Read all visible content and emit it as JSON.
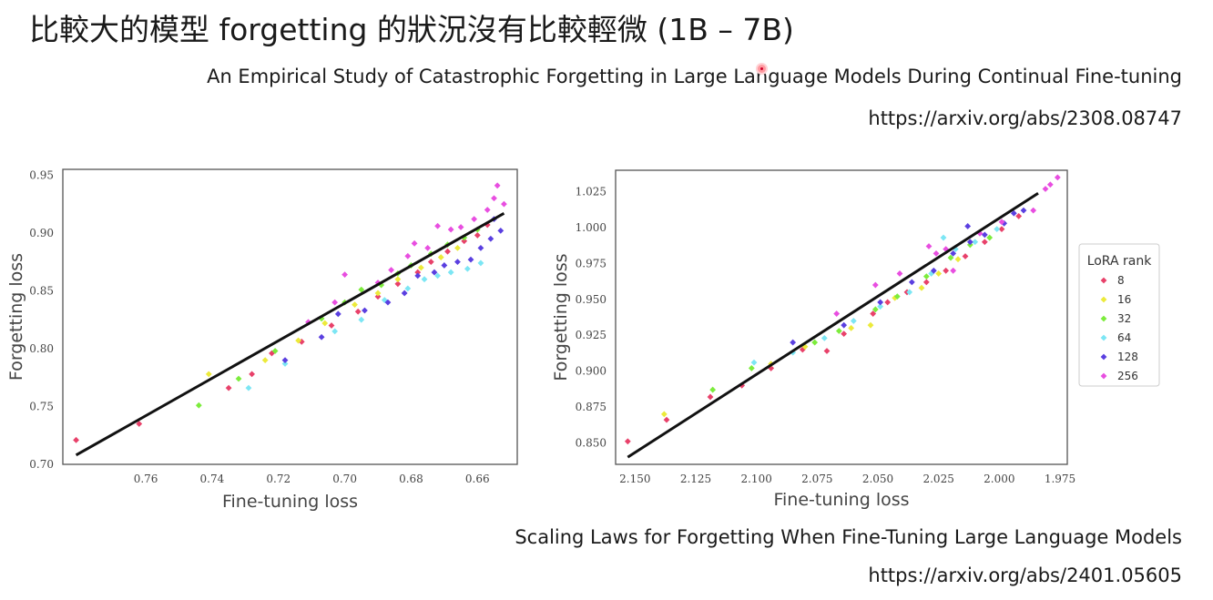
{
  "slide": {
    "title": "比較大的模型 forgetting 的狀況沒有比較輕微 (1B – 7B)",
    "ref1_title": "An Empirical Study of Catastrophic Forgetting in Large Language Models During Continual Fine-tuning",
    "ref1_url": "https://arxiv.org/abs/2308.08747",
    "ref2_title": "Scaling Laws for Forgetting When Fine-Tuning Large Language Models",
    "ref2_url": "https://arxiv.org/abs/2401.05605"
  },
  "legend": {
    "title": "LoRA rank",
    "entries": [
      {
        "label": "8",
        "color": "#e8416a"
      },
      {
        "label": "16",
        "color": "#ecea3a"
      },
      {
        "label": "32",
        "color": "#7cec3c"
      },
      {
        "label": "64",
        "color": "#7ce6f4"
      },
      {
        "label": "128",
        "color": "#5a3fe0"
      },
      {
        "label": "256",
        "color": "#e84ee0"
      }
    ]
  },
  "chart_data": [
    {
      "type": "scatter",
      "xlabel": "Fine-tuning loss",
      "ylabel": "Forgetting loss",
      "x_reversed": true,
      "xlim": [
        0.785,
        0.648
      ],
      "ylim": [
        0.7,
        0.955
      ],
      "xticks": [
        "0.76",
        "0.74",
        "0.72",
        "0.70",
        "0.68",
        "0.66"
      ],
      "yticks": [
        "0.70",
        "0.75",
        "0.80",
        "0.85",
        "0.90",
        "0.95"
      ],
      "fit_line": [
        [
          0.781,
          0.708
        ],
        [
          0.652,
          0.917
        ]
      ],
      "series": [
        {
          "name": "8",
          "points": [
            [
              0.781,
              0.721
            ],
            [
              0.762,
              0.735
            ],
            [
              0.735,
              0.766
            ],
            [
              0.728,
              0.778
            ],
            [
              0.722,
              0.796
            ],
            [
              0.713,
              0.806
            ],
            [
              0.704,
              0.82
            ],
            [
              0.696,
              0.832
            ],
            [
              0.69,
              0.845
            ],
            [
              0.684,
              0.856
            ],
            [
              0.678,
              0.866
            ],
            [
              0.674,
              0.875
            ],
            [
              0.669,
              0.884
            ],
            [
              0.664,
              0.893
            ],
            [
              0.66,
              0.898
            ],
            [
              0.657,
              0.907
            ]
          ]
        },
        {
          "name": "16",
          "points": [
            [
              0.741,
              0.778
            ],
            [
              0.724,
              0.79
            ],
            [
              0.714,
              0.807
            ],
            [
              0.706,
              0.822
            ],
            [
              0.697,
              0.838
            ],
            [
              0.69,
              0.848
            ],
            [
              0.684,
              0.86
            ],
            [
              0.677,
              0.87
            ],
            [
              0.671,
              0.879
            ],
            [
              0.666,
              0.887
            ]
          ]
        },
        {
          "name": "32",
          "points": [
            [
              0.744,
              0.751
            ],
            [
              0.732,
              0.774
            ],
            [
              0.721,
              0.798
            ],
            [
              0.707,
              0.826
            ],
            [
              0.7,
              0.84
            ],
            [
              0.695,
              0.851
            ],
            [
              0.689,
              0.855
            ],
            [
              0.684,
              0.865
            ],
            [
              0.68,
              0.872
            ],
            [
              0.674,
              0.882
            ],
            [
              0.669,
              0.89
            ],
            [
              0.664,
              0.896
            ],
            [
              0.66,
              0.903
            ]
          ]
        },
        {
          "name": "64",
          "points": [
            [
              0.729,
              0.766
            ],
            [
              0.718,
              0.787
            ],
            [
              0.703,
              0.815
            ],
            [
              0.695,
              0.825
            ],
            [
              0.688,
              0.842
            ],
            [
              0.681,
              0.852
            ],
            [
              0.676,
              0.86
            ],
            [
              0.672,
              0.863
            ],
            [
              0.668,
              0.866
            ],
            [
              0.663,
              0.869
            ],
            [
              0.659,
              0.874
            ]
          ]
        },
        {
          "name": "128",
          "points": [
            [
              0.718,
              0.79
            ],
            [
              0.707,
              0.81
            ],
            [
              0.702,
              0.83
            ],
            [
              0.694,
              0.833
            ],
            [
              0.687,
              0.84
            ],
            [
              0.682,
              0.848
            ],
            [
              0.678,
              0.863
            ],
            [
              0.673,
              0.866
            ],
            [
              0.67,
              0.872
            ],
            [
              0.666,
              0.875
            ],
            [
              0.662,
              0.877
            ],
            [
              0.659,
              0.887
            ],
            [
              0.656,
              0.895
            ],
            [
              0.653,
              0.902
            ],
            [
              0.655,
              0.912
            ]
          ]
        },
        {
          "name": "256",
          "points": [
            [
              0.711,
              0.823
            ],
            [
              0.703,
              0.84
            ],
            [
              0.7,
              0.864
            ],
            [
              0.69,
              0.857
            ],
            [
              0.686,
              0.868
            ],
            [
              0.681,
              0.88
            ],
            [
              0.679,
              0.891
            ],
            [
              0.675,
              0.887
            ],
            [
              0.672,
              0.906
            ],
            [
              0.668,
              0.903
            ],
            [
              0.665,
              0.905
            ],
            [
              0.661,
              0.912
            ],
            [
              0.657,
              0.92
            ],
            [
              0.655,
              0.93
            ],
            [
              0.652,
              0.925
            ],
            [
              0.654,
              0.941
            ]
          ]
        }
      ]
    },
    {
      "type": "scatter",
      "xlabel": "Fine-tuning loss",
      "ylabel": "Forgetting loss",
      "x_reversed": true,
      "xlim": [
        2.158,
        1.972
      ],
      "ylim": [
        0.835,
        1.04
      ],
      "xticks": [
        "2.150",
        "2.125",
        "2.100",
        "2.075",
        "2.050",
        "2.025",
        "2.000",
        "1.975"
      ],
      "yticks": [
        "0.850",
        "0.875",
        "0.900",
        "0.925",
        "0.950",
        "0.975",
        "1.000",
        "1.025"
      ],
      "fit_line": [
        [
          2.153,
          0.84
        ],
        [
          1.984,
          1.024
        ]
      ],
      "series": [
        {
          "name": "8",
          "points": [
            [
              2.153,
              0.851
            ],
            [
              2.137,
              0.866
            ],
            [
              2.119,
              0.882
            ],
            [
              2.106,
              0.89
            ],
            [
              2.094,
              0.902
            ],
            [
              2.081,
              0.915
            ],
            [
              2.071,
              0.914
            ],
            [
              2.064,
              0.926
            ],
            [
              2.052,
              0.94
            ],
            [
              2.046,
              0.948
            ],
            [
              2.038,
              0.955
            ],
            [
              2.03,
              0.962
            ],
            [
              2.022,
              0.97
            ],
            [
              2.014,
              0.98
            ],
            [
              2.006,
              0.99
            ],
            [
              1.999,
              0.999
            ],
            [
              1.992,
              1.008
            ]
          ]
        },
        {
          "name": "16",
          "points": [
            [
              2.138,
              0.87
            ],
            [
              2.094,
              0.905
            ],
            [
              2.08,
              0.917
            ],
            [
              2.061,
              0.93
            ],
            [
              2.053,
              0.932
            ],
            [
              2.043,
              0.951
            ],
            [
              2.032,
              0.958
            ],
            [
              2.025,
              0.968
            ],
            [
              2.017,
              0.978
            ]
          ]
        },
        {
          "name": "32",
          "points": [
            [
              2.118,
              0.887
            ],
            [
              2.102,
              0.902
            ],
            [
              2.076,
              0.92
            ],
            [
              2.066,
              0.928
            ],
            [
              2.051,
              0.943
            ],
            [
              2.042,
              0.952
            ],
            [
              2.03,
              0.966
            ],
            [
              2.02,
              0.979
            ],
            [
              2.012,
              0.988
            ],
            [
              2.004,
              0.993
            ]
          ]
        },
        {
          "name": "64",
          "points": [
            [
              2.101,
              0.906
            ],
            [
              2.085,
              0.913
            ],
            [
              2.072,
              0.923
            ],
            [
              2.06,
              0.935
            ],
            [
              2.049,
              0.945
            ],
            [
              2.037,
              0.955
            ],
            [
              2.028,
              0.968
            ],
            [
              2.018,
              0.985
            ],
            [
              2.01,
              0.99
            ],
            [
              2.001,
              0.999
            ],
            [
              2.023,
              0.993
            ]
          ]
        },
        {
          "name": "128",
          "points": [
            [
              2.085,
              0.92
            ],
            [
              2.064,
              0.932
            ],
            [
              2.049,
              0.948
            ],
            [
              2.036,
              0.962
            ],
            [
              2.027,
              0.97
            ],
            [
              2.019,
              0.982
            ],
            [
              2.012,
              0.99
            ],
            [
              2.006,
              0.995
            ],
            [
              1.998,
              1.003
            ],
            [
              1.994,
              1.01
            ],
            [
              1.99,
              1.012
            ],
            [
              2.013,
              1.001
            ]
          ]
        },
        {
          "name": "256",
          "points": [
            [
              2.067,
              0.94
            ],
            [
              2.051,
              0.96
            ],
            [
              2.041,
              0.968
            ],
            [
              2.026,
              0.982
            ],
            [
              2.022,
              0.985
            ],
            [
              2.008,
              0.996
            ],
            [
              1.999,
              1.004
            ],
            [
              1.986,
              1.012
            ],
            [
              1.981,
              1.027
            ],
            [
              1.976,
              1.035
            ],
            [
              1.979,
              1.03
            ],
            [
              2.029,
              0.987
            ],
            [
              2.019,
              0.97
            ]
          ]
        }
      ]
    }
  ]
}
